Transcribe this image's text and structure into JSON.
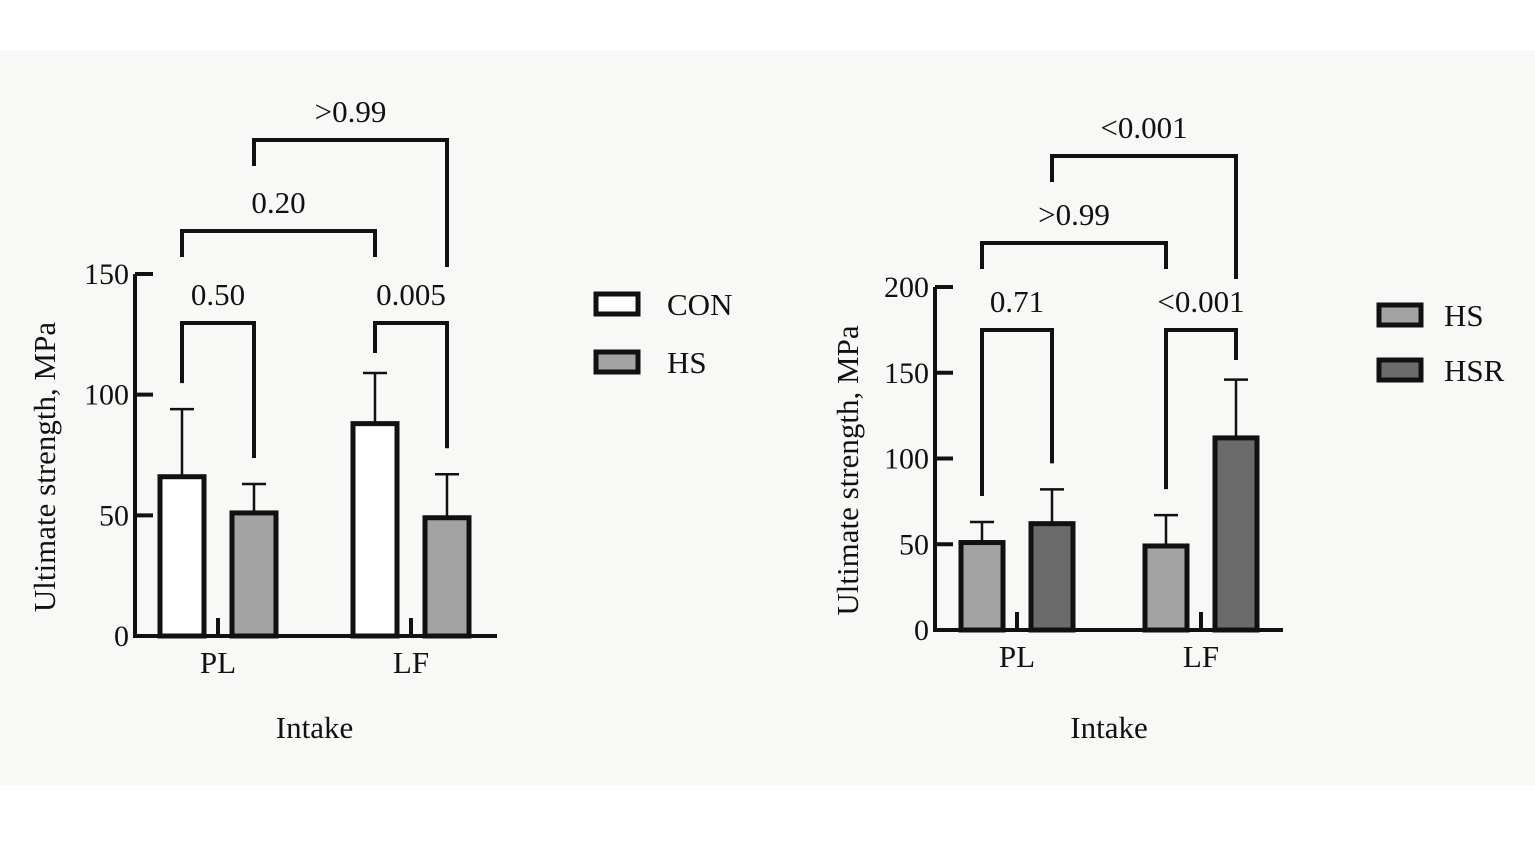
{
  "colors": {
    "stroke": "#111111",
    "background": "#f8f8f6",
    "CON": "#ffffff",
    "HS": "#a3a3a3",
    "HSR": "#6b6b6b"
  },
  "chart_data": [
    {
      "type": "bar",
      "categories": [
        "PL",
        "LF"
      ],
      "xlabel": "Intake",
      "ylabel": "Ultimate strength, MPa",
      "ylim": [
        0,
        150
      ],
      "yticks": [
        "0",
        "50",
        "100",
        "150"
      ],
      "legend_position": "right",
      "series": [
        {
          "name": "CON",
          "color": "#ffffff",
          "values": [
            66,
            88
          ],
          "errors": [
            28,
            21
          ]
        },
        {
          "name": "HS",
          "color": "#a3a3a3",
          "values": [
            51,
            49
          ],
          "errors": [
            12,
            18
          ]
        }
      ],
      "comparisons": [
        {
          "label": "0.50",
          "from": [
            0,
            0
          ],
          "to": [
            0,
            1
          ],
          "level": 0
        },
        {
          "label": "0.005",
          "from": [
            1,
            0
          ],
          "to": [
            1,
            1
          ],
          "level": 0
        },
        {
          "label": "0.20",
          "from": [
            0,
            0
          ],
          "to": [
            1,
            0
          ],
          "level": 1
        },
        {
          "label": ">0.99",
          "from": [
            0,
            1
          ],
          "to": [
            1,
            1
          ],
          "level": 2
        }
      ]
    },
    {
      "type": "bar",
      "categories": [
        "PL",
        "LF"
      ],
      "xlabel": "Intake",
      "ylabel": "Ultimate strength, MPa",
      "ylim": [
        0,
        200
      ],
      "yticks": [
        "0",
        "50",
        "100",
        "150",
        "200"
      ],
      "legend_position": "right",
      "series": [
        {
          "name": "HS",
          "color": "#a3a3a3",
          "values": [
            51,
            49
          ],
          "errors": [
            12,
            18
          ]
        },
        {
          "name": "HSR",
          "color": "#6b6b6b",
          "values": [
            62,
            112
          ],
          "errors": [
            20,
            34
          ]
        }
      ],
      "comparisons": [
        {
          "label": "0.71",
          "from": [
            0,
            0
          ],
          "to": [
            0,
            1
          ],
          "level": 0
        },
        {
          "label": "<0.001",
          "from": [
            1,
            0
          ],
          "to": [
            1,
            1
          ],
          "level": 0
        },
        {
          "label": ">0.99",
          "from": [
            0,
            0
          ],
          "to": [
            1,
            0
          ],
          "level": 1
        },
        {
          "label": "<0.001",
          "from": [
            0,
            1
          ],
          "to": [
            1,
            1
          ],
          "level": 2
        }
      ]
    }
  ]
}
